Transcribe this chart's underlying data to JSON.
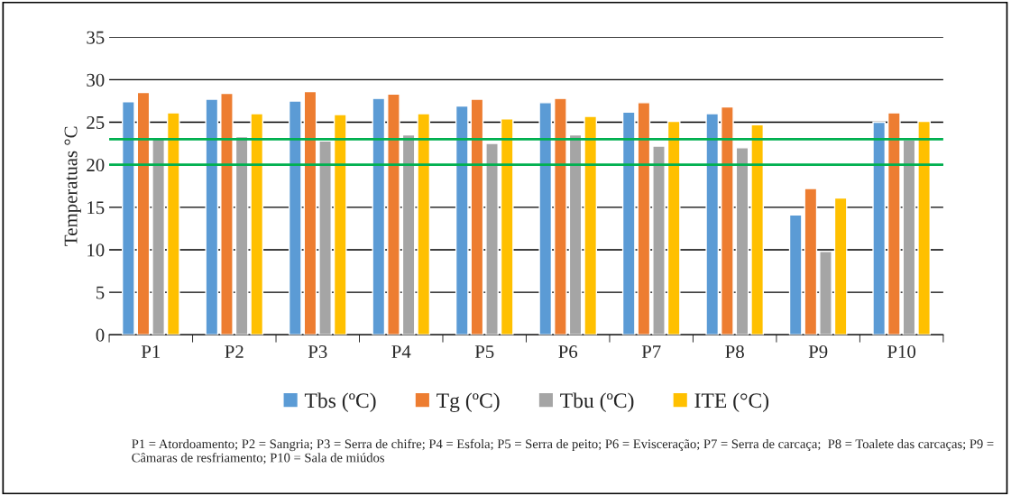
{
  "chart_data": {
    "type": "bar",
    "ylabel": "Temperatuas °C",
    "categories": [
      "P1",
      "P2",
      "P3",
      "P4",
      "P5",
      "P6",
      "P7",
      "P8",
      "P9",
      "P10"
    ],
    "series": [
      {
        "name": "Tbs (ºC)",
        "color": "#5b9bd5",
        "values": [
          27.4,
          27.7,
          27.5,
          27.8,
          26.9,
          27.3,
          26.2,
          26.0,
          14.1,
          25.0
        ]
      },
      {
        "name": "Tg (ºC)",
        "color": "#ed7d31",
        "values": [
          28.5,
          28.4,
          28.6,
          28.3,
          27.7,
          27.8,
          27.3,
          26.8,
          17.2,
          26.1
        ]
      },
      {
        "name": "Tbu (ºC)",
        "color": "#a5a5a5",
        "values": [
          23.0,
          23.3,
          22.8,
          23.5,
          22.5,
          23.5,
          22.2,
          22.0,
          9.8,
          22.9
        ]
      },
      {
        "name": "ITE (°C)",
        "color": "#ffc000",
        "values": [
          26.1,
          26.0,
          25.9,
          26.0,
          25.4,
          25.7,
          25.1,
          24.7,
          16.1,
          25.1
        ]
      }
    ],
    "ylim": [
      0,
      35
    ],
    "yticks": [
      0,
      5,
      10,
      15,
      20,
      25,
      30,
      35
    ],
    "grid": "y",
    "legend": "bottom",
    "ref_lines": [
      {
        "axis": "y",
        "value": 23,
        "color": "#00b050"
      },
      {
        "axis": "y",
        "value": 20,
        "color": "#00b050"
      }
    ],
    "annotations": [
      "P1 = Atordoamento; P2 = Sangria; P3 = Serra de chifre; P4 = Esfola; P5 = Serra de peito; P6 = Evisceração; P7 = Serra de carcaça;  P8 = Toalete das carcaças; P9 = Câmaras de resfriamento; P10 = Sala de miúdos"
    ]
  }
}
